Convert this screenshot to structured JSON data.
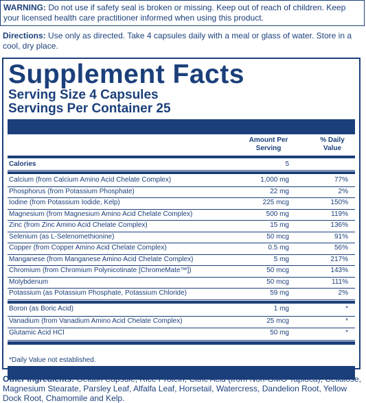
{
  "warning": {
    "label": "WARNING:",
    "text": "Do not use if safety seal is broken or missing. Keep out of reach of children. Keep your licensed health care practitioner informed when using this product."
  },
  "directions": {
    "label": "Directions:",
    "text": "Use only as directed. Take 4 capsules daily with a meal or glass of water. Store in a cool, dry place."
  },
  "facts": {
    "title": "Supplement Facts",
    "serving_size": "Serving Size 4 Capsules",
    "servings_per_container": "Servings Per Container 25",
    "col_amount": "Amount Per Serving",
    "col_dv": "% Daily Value",
    "calories": {
      "name": "Calories",
      "amount": "5",
      "dv": ""
    },
    "group1": [
      {
        "name": "Calcium (from Calcium Amino Acid Chelate Complex)",
        "amount": "1,000 mg",
        "dv": "77%"
      },
      {
        "name": "Phosphorus (from Potassium Phosphate)",
        "amount": "22 mg",
        "dv": "2%"
      },
      {
        "name": "Iodine (from Potassium Iodide, Kelp)",
        "amount": "225 mcg",
        "dv": "150%"
      },
      {
        "name": "Magnesium (from Magnesium Amino Acid Chelate Complex)",
        "amount": "500 mg",
        "dv": "119%"
      },
      {
        "name": "Zinc (from Zinc Amino Acid Chelate Complex)",
        "amount": "15 mg",
        "dv": "136%"
      },
      {
        "name": "Selenium (as L-Selenomethionine)",
        "amount": "50 mcg",
        "dv": "91%"
      },
      {
        "name": "Copper (from Copper Amino Acid Chelate Complex)",
        "amount": "0.5 mg",
        "dv": "56%"
      },
      {
        "name": "Manganese (from Manganese Amino Acid Chelate Complex)",
        "amount": "5 mg",
        "dv": "217%"
      },
      {
        "name": "Chromium (from Chromium Polynicotinate [ChromeMate™])",
        "amount": "50 mcg",
        "dv": "143%"
      },
      {
        "name": "Molybdenum",
        "amount": "50 mcg",
        "dv": "111%"
      },
      {
        "name": "Potassium (as Potassium Phosphate, Potassium Chloride)",
        "amount": "59 mg",
        "dv": "2%"
      }
    ],
    "group2": [
      {
        "name": "Boron (as Boric Acid)",
        "amount": "1 mg",
        "dv": "*"
      },
      {
        "name": "Vanadium (from Vanadium Amino Acid Chelate Complex)",
        "amount": "25 mcg",
        "dv": "*"
      },
      {
        "name": "Glutamic Acid HCl",
        "amount": "50 mg",
        "dv": "*"
      }
    ],
    "footnote": "*Daily Value not established."
  },
  "other_ingredients": {
    "label": "Other Ingredients:",
    "text": "Gelatin Capsule, Rice Protein, Citric Acid (from Non-GMO Tapioca), Cellulose, Magnesium Stearate, Parsley Leaf, Alfalfa Leaf, Horsetail, Watercress, Dandelion Root, Yellow Dock Root, Chamomile and Kelp."
  }
}
